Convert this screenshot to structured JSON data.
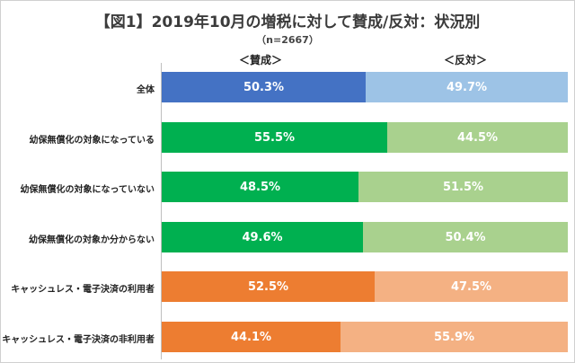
{
  "chart_data": {
    "type": "bar",
    "orientation": "horizontal",
    "stacked": true,
    "title": "【図1】2019年10月の増税に対して賛成/反対：状況別",
    "subtitle": "（n=2667）",
    "series_headers": [
      "＜賛成＞",
      "＜反対＞"
    ],
    "categories": [
      "全体",
      "幼保無償化の対象になっている",
      "幼保無償化の対象になっていない",
      "幼保無償化の対象か分からない",
      "キャッシュレス・電子決済の利用者",
      "キャッシュレス・電子決済の非利用者"
    ],
    "series": [
      {
        "name": "賛成",
        "values": [
          50.3,
          55.5,
          48.5,
          49.6,
          52.5,
          44.1
        ]
      },
      {
        "name": "反対",
        "values": [
          49.7,
          44.5,
          51.5,
          50.4,
          47.5,
          55.9
        ]
      }
    ],
    "value_labels": {
      "賛成": [
        "50.3%",
        "55.5%",
        "48.5%",
        "49.6%",
        "52.5%",
        "44.1%"
      ],
      "反対": [
        "49.7%",
        "44.5%",
        "51.5%",
        "50.4%",
        "47.5%",
        "55.9%"
      ]
    },
    "colors": {
      "agree": [
        "#4472c4",
        "#00b050",
        "#00b050",
        "#00b050",
        "#ed7d31",
        "#ed7d31"
      ],
      "disagree": [
        "#9dc3e6",
        "#a9d18e",
        "#a9d18e",
        "#a9d18e",
        "#f4b183",
        "#f4b183"
      ]
    },
    "xlim": [
      0,
      100
    ]
  }
}
